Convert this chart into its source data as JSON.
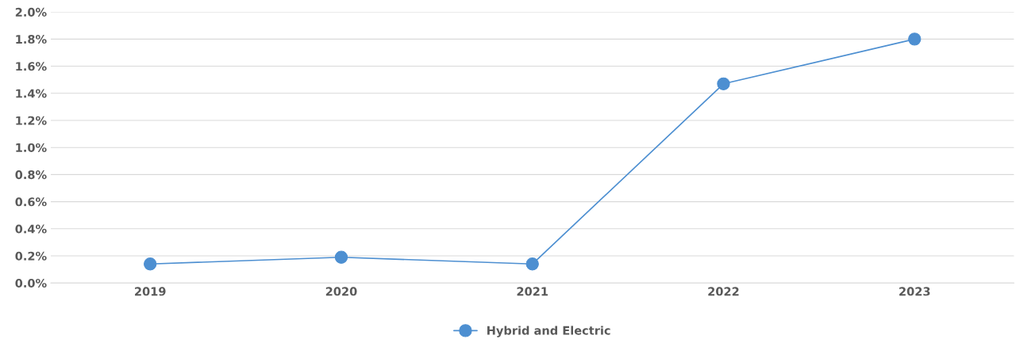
{
  "chart_data": {
    "type": "line",
    "categories": [
      "2019",
      "2020",
      "2021",
      "2022",
      "2023"
    ],
    "series": [
      {
        "name": "Hybrid and Electric",
        "color": "#4d8fd1",
        "values": [
          0.14,
          0.19,
          0.14,
          1.47,
          1.8
        ]
      }
    ],
    "ylim": [
      0,
      2.0
    ],
    "yticks": [
      {
        "value": 0,
        "label": "0.0%"
      },
      {
        "value": 0.2,
        "label": "0.2%"
      },
      {
        "value": 0.4,
        "label": "0.4%"
      },
      {
        "value": 0.6,
        "label": "0.6%"
      },
      {
        "value": 0.8,
        "label": "0.8%"
      },
      {
        "value": 1.0,
        "label": "1.0%"
      },
      {
        "value": 1.2,
        "label": "1.2%"
      },
      {
        "value": 1.4,
        "label": "1.4%"
      },
      {
        "value": 1.6,
        "label": "1.6%"
      },
      {
        "value": 1.8,
        "label": "1.8%"
      },
      {
        "value": 2.0,
        "label": "2.0%"
      }
    ],
    "grid": "y",
    "legend": "bottom",
    "marker": "circle",
    "line_style": "solid"
  }
}
